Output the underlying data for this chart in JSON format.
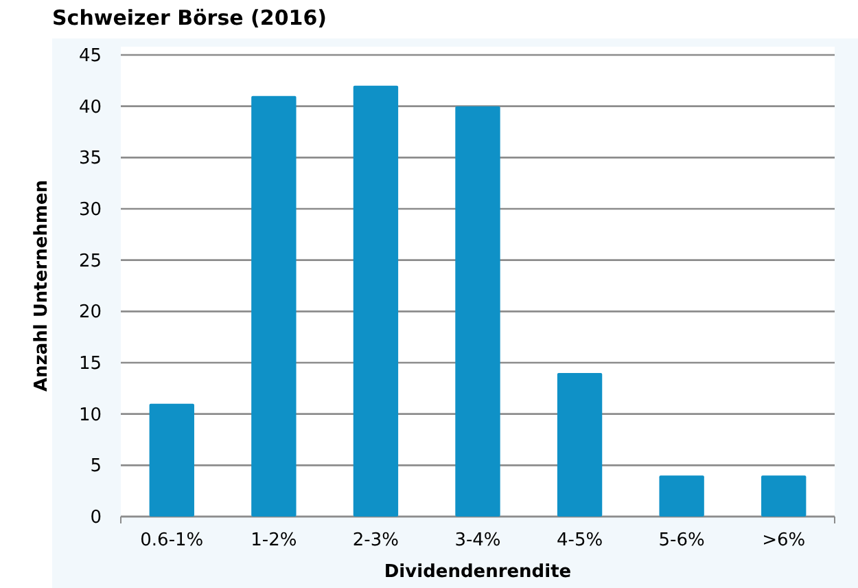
{
  "chart_data": {
    "type": "bar",
    "title": "Schweizer Börse (2016)",
    "xlabel": "Dividendenrendite",
    "ylabel": "Anzahl Unternehmen",
    "categories": [
      "0.6-1%",
      "1-2%",
      "2-3%",
      "3-4%",
      "4-5%",
      "5-6%",
      ">6%"
    ],
    "values": [
      11,
      41,
      42,
      40,
      14,
      4,
      4
    ],
    "color": "#0f91c7",
    "ylim": [
      0,
      45
    ],
    "yticks": [
      0,
      5,
      10,
      15,
      20,
      25,
      30,
      35,
      40,
      45
    ],
    "grid": "y"
  }
}
